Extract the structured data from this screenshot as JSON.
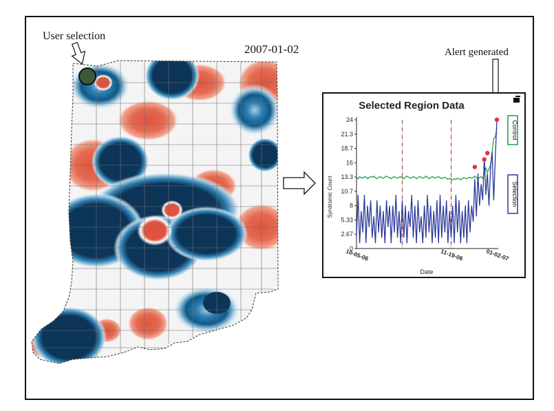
{
  "figure": {
    "user_selection_label": "User selection",
    "date_label": "2007-01-02",
    "alert_label": "Alert generated",
    "colors": {
      "hot": "#e0533e",
      "hot_light": "#f2a48f",
      "cold": "#0d3558",
      "cold_mid": "#2d7fb2",
      "cold_light": "#a9cfe3",
      "selection_line": "#2b3a9a",
      "control_line": "#1aa04d",
      "alert_marker": "#e0323a"
    }
  },
  "chart_data": {
    "type": "line",
    "title": "Selected Region Data",
    "xlabel": "Date",
    "ylabel": "Syndromic Count",
    "x_tick_labels": [
      "10-05-06",
      "11-19-06",
      "01-02-07"
    ],
    "y_ticks": [
      "0",
      "2.67",
      "5.33",
      "8",
      "10.7",
      "13.3",
      "16",
      "18.7",
      "21.3",
      "24"
    ],
    "ylim": [
      0,
      24
    ],
    "legend": [
      "Control",
      "Selection"
    ],
    "legend_placement": "right",
    "n_days": 90,
    "vertical_markers_day": [
      29,
      60
    ],
    "series": [
      {
        "name": "Control",
        "color": "#1aa04d",
        "values": [
          13.3,
          13.0,
          13.4,
          13.2,
          13.1,
          13.4,
          13.3,
          13.0,
          13.2,
          13.4,
          13.3,
          13.5,
          13.2,
          13.0,
          13.3,
          13.4,
          13.2,
          13.1,
          13.3,
          13.5,
          13.3,
          13.2,
          13.0,
          13.3,
          13.4,
          13.2,
          13.1,
          13.3,
          13.4,
          13.2,
          13.0,
          13.3,
          13.5,
          13.3,
          13.1,
          13.2,
          13.4,
          13.3,
          13.0,
          13.2,
          13.4,
          13.3,
          13.1,
          13.2,
          13.5,
          13.3,
          13.0,
          13.2,
          13.4,
          13.3,
          13.1,
          13.3,
          13.4,
          13.2,
          13.0,
          13.2,
          13.3,
          13.1,
          12.9,
          13.1,
          12.9,
          12.8,
          13.0,
          12.9,
          13.1,
          13.0,
          12.8,
          13.0,
          13.2,
          13.1,
          13.0,
          13.2,
          13.3,
          13.1,
          13.2,
          13.5,
          13.2,
          13.0,
          13.2,
          13.4,
          13.1,
          14.0,
          15.0,
          14.2,
          14.8,
          15.5,
          18.0,
          20.5,
          20.8,
          22.5
        ]
      },
      {
        "name": "Selection",
        "color": "#2b3a9a",
        "values": [
          2,
          10,
          1,
          7,
          3,
          10,
          1,
          8,
          4,
          9,
          2,
          6,
          1,
          9,
          3,
          8,
          2,
          7,
          1,
          9,
          4,
          8,
          1,
          8,
          3,
          10,
          2,
          7,
          1,
          9,
          2,
          8,
          1,
          7,
          4,
          10,
          2,
          8,
          1,
          9,
          3,
          6,
          1,
          8,
          2,
          10,
          3,
          8,
          1,
          7,
          2,
          9,
          1,
          10,
          2,
          8,
          3,
          9,
          1,
          7,
          2,
          8,
          1,
          10,
          3,
          9,
          1,
          7,
          2,
          8,
          1,
          9,
          3,
          8,
          5,
          13,
          6,
          14,
          8,
          12,
          9,
          17,
          10,
          14,
          8,
          15,
          18,
          9,
          17,
          24
        ]
      }
    ],
    "alert_points": [
      {
        "day": 75,
        "value": 15.2
      },
      {
        "day": 81,
        "value": 16.6
      },
      {
        "day": 83,
        "value": 17.8
      },
      {
        "day": 89,
        "value": 24
      }
    ]
  }
}
